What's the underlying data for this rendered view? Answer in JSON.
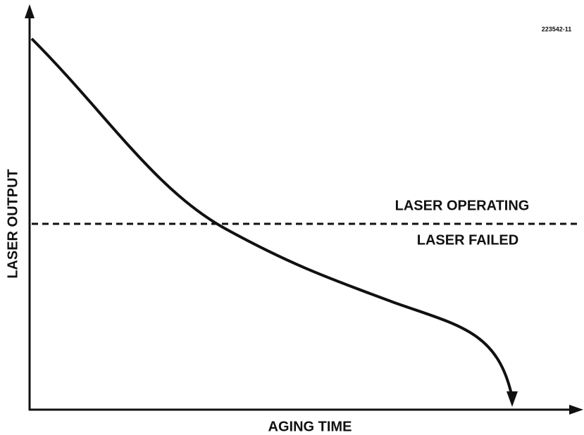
{
  "figure_id": "223542-11",
  "x_axis_label": "AGING TIME",
  "y_axis_label": "LASER OUTPUT",
  "threshold": {
    "above_label": "LASER OPERATING",
    "below_label": "LASER FAILED"
  }
}
